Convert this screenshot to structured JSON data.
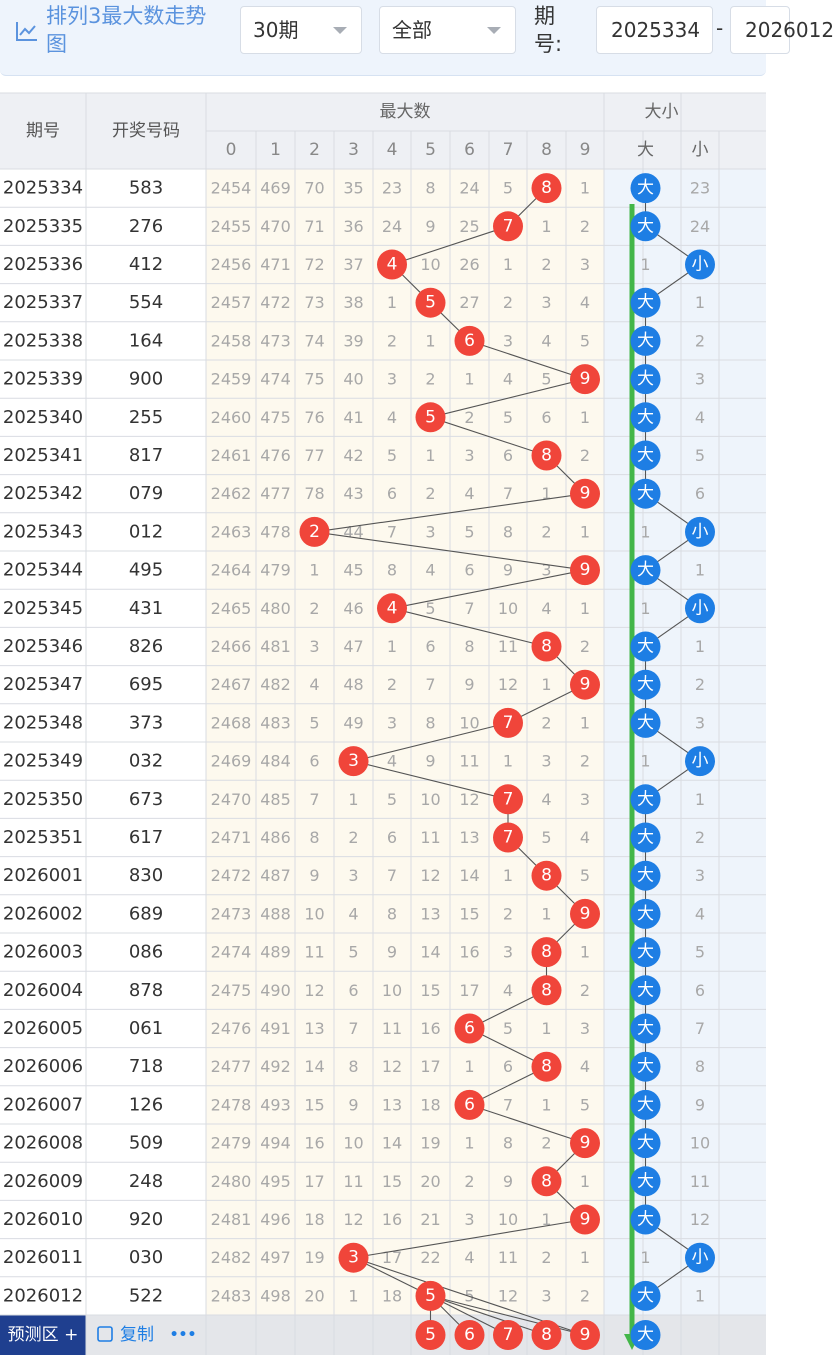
{
  "toolbar": {
    "title": "排列3最大数走势图",
    "period_select": "30期",
    "filter_select": "全部",
    "issue_label": "期号:",
    "issue_from": "2025334",
    "issue_sep": "-",
    "issue_to": "2026012"
  },
  "headers": {
    "issue": "期号",
    "draw": "开奖号码",
    "max_group": "最大数",
    "size_group": "大小",
    "big": "大",
    "small": "小",
    "digits": [
      "0",
      "1",
      "2",
      "3",
      "4",
      "5",
      "6",
      "7",
      "8",
      "9"
    ]
  },
  "footer": {
    "predict_label": "预测区",
    "copy_label": "复制",
    "more_label": "•••",
    "predicted_digits": [
      5,
      6,
      7,
      8,
      9
    ],
    "predicted_size": "大"
  },
  "colors": {
    "ball_red": "#f0453a",
    "ball_blue": "#1e7ee4",
    "trend_arrow": "#43b649",
    "grid_bg": "#fdf9ee",
    "header_bg": "#eef0f4"
  },
  "chart_data": {
    "type": "table",
    "issues": [
      "2025334",
      "2025335",
      "2025336",
      "2025337",
      "2025338",
      "2025339",
      "2025340",
      "2025341",
      "2025342",
      "2025343",
      "2025344",
      "2025345",
      "2025346",
      "2025347",
      "2025348",
      "2025349",
      "2025350",
      "2025351",
      "2026001",
      "2026002",
      "2026003",
      "2026004",
      "2026005",
      "2026006",
      "2026007",
      "2026008",
      "2026009",
      "2026010",
      "2026011",
      "2026012"
    ],
    "draws": [
      "583",
      "276",
      "412",
      "554",
      "164",
      "900",
      "255",
      "817",
      "079",
      "012",
      "495",
      "431",
      "826",
      "695",
      "373",
      "032",
      "673",
      "617",
      "830",
      "689",
      "086",
      "878",
      "061",
      "718",
      "126",
      "509",
      "248",
      "920",
      "030",
      "522"
    ],
    "max_digit": [
      8,
      7,
      4,
      5,
      6,
      9,
      5,
      8,
      9,
      2,
      9,
      4,
      8,
      9,
      7,
      3,
      7,
      7,
      8,
      9,
      8,
      8,
      6,
      8,
      6,
      9,
      8,
      9,
      3,
      5
    ],
    "omission": [
      [
        2454,
        469,
        70,
        35,
        23,
        8,
        24,
        5,
        0,
        1
      ],
      [
        2455,
        470,
        71,
        36,
        24,
        9,
        25,
        0,
        1,
        2
      ],
      [
        2456,
        471,
        72,
        37,
        0,
        10,
        26,
        1,
        2,
        3
      ],
      [
        2457,
        472,
        73,
        38,
        1,
        0,
        27,
        2,
        3,
        4
      ],
      [
        2458,
        473,
        74,
        39,
        2,
        1,
        0,
        3,
        4,
        5
      ],
      [
        2459,
        474,
        75,
        40,
        3,
        2,
        1,
        4,
        5,
        0
      ],
      [
        2460,
        475,
        76,
        41,
        4,
        0,
        2,
        5,
        6,
        1
      ],
      [
        2461,
        476,
        77,
        42,
        5,
        1,
        3,
        6,
        0,
        2
      ],
      [
        2462,
        477,
        78,
        43,
        6,
        2,
        4,
        7,
        1,
        0
      ],
      [
        2463,
        478,
        0,
        44,
        7,
        3,
        5,
        8,
        2,
        1
      ],
      [
        2464,
        479,
        1,
        45,
        8,
        4,
        6,
        9,
        3,
        0
      ],
      [
        2465,
        480,
        2,
        46,
        0,
        5,
        7,
        10,
        4,
        1
      ],
      [
        2466,
        481,
        3,
        47,
        1,
        6,
        8,
        11,
        0,
        2
      ],
      [
        2467,
        482,
        4,
        48,
        2,
        7,
        9,
        12,
        1,
        0
      ],
      [
        2468,
        483,
        5,
        49,
        3,
        8,
        10,
        0,
        2,
        1
      ],
      [
        2469,
        484,
        6,
        0,
        4,
        9,
        11,
        1,
        3,
        2
      ],
      [
        2470,
        485,
        7,
        1,
        5,
        10,
        12,
        0,
        4,
        3
      ],
      [
        2471,
        486,
        8,
        2,
        6,
        11,
        13,
        0,
        5,
        4
      ],
      [
        2472,
        487,
        9,
        3,
        7,
        12,
        14,
        1,
        0,
        5
      ],
      [
        2473,
        488,
        10,
        4,
        8,
        13,
        15,
        2,
        1,
        0
      ],
      [
        2474,
        489,
        11,
        5,
        9,
        14,
        16,
        3,
        0,
        1
      ],
      [
        2475,
        490,
        12,
        6,
        10,
        15,
        17,
        4,
        0,
        2
      ],
      [
        2476,
        491,
        13,
        7,
        11,
        16,
        0,
        5,
        1,
        3
      ],
      [
        2477,
        492,
        14,
        8,
        12,
        17,
        1,
        6,
        0,
        4
      ],
      [
        2478,
        493,
        15,
        9,
        13,
        18,
        0,
        7,
        1,
        5
      ],
      [
        2479,
        494,
        16,
        10,
        14,
        19,
        1,
        8,
        2,
        0
      ],
      [
        2480,
        495,
        17,
        11,
        15,
        20,
        2,
        9,
        0,
        1
      ],
      [
        2481,
        496,
        18,
        12,
        16,
        21,
        3,
        10,
        1,
        0
      ],
      [
        2482,
        497,
        19,
        0,
        17,
        22,
        4,
        11,
        2,
        1
      ],
      [
        2483,
        498,
        20,
        1,
        18,
        0,
        5,
        12,
        3,
        2
      ]
    ],
    "size": [
      "大",
      "大",
      "小",
      "大",
      "大",
      "大",
      "大",
      "大",
      "大",
      "小",
      "大",
      "小",
      "大",
      "大",
      "大",
      "小",
      "大",
      "大",
      "大",
      "大",
      "大",
      "大",
      "大",
      "大",
      "大",
      "大",
      "大",
      "大",
      "小",
      "大"
    ],
    "size_omission": [
      23,
      24,
      1,
      1,
      2,
      3,
      4,
      5,
      6,
      1,
      1,
      1,
      1,
      2,
      3,
      1,
      1,
      2,
      3,
      4,
      5,
      6,
      7,
      8,
      9,
      10,
      11,
      12,
      1,
      1
    ]
  }
}
